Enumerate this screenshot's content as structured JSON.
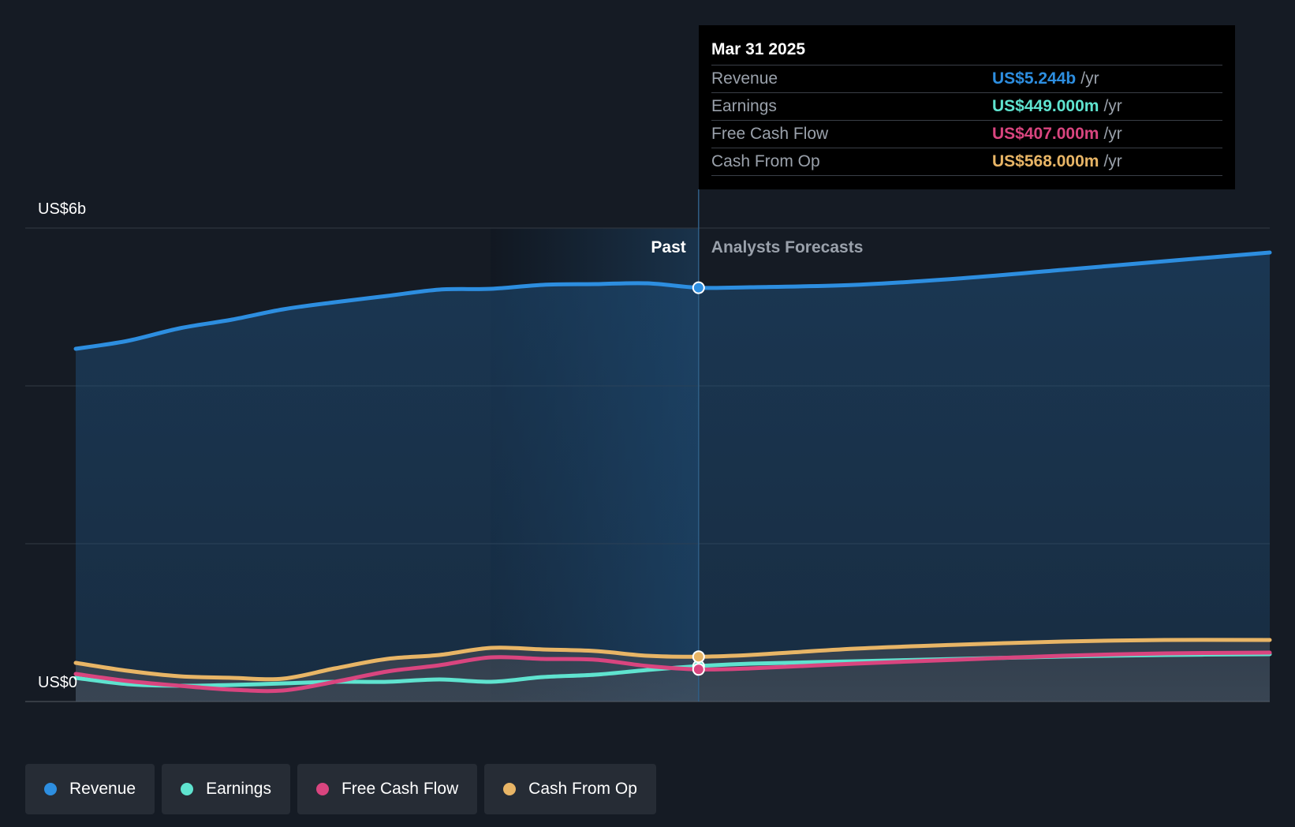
{
  "chart_data": {
    "type": "line",
    "y_top_label": "US$6b",
    "y_bottom_label": "US$0",
    "ylim": [
      0,
      6
    ],
    "y_unit": "US$ billions",
    "x_ticks": [
      "2023",
      "2024",
      "2025",
      "2026",
      "2027"
    ],
    "xlim": [
      "2022-03-31",
      "2027-12-31"
    ],
    "divider_date": "2025-03-31",
    "past_label": "Past",
    "forecast_label": "Analysts Forecasts",
    "series": [
      {
        "name": "Revenue",
        "color": "#2d8ee0",
        "points": [
          [
            "2022-03-31",
            4.47
          ],
          [
            "2022-06-30",
            4.57
          ],
          [
            "2022-09-30",
            4.73
          ],
          [
            "2022-12-31",
            4.84
          ],
          [
            "2023-03-31",
            4.97
          ],
          [
            "2023-06-30",
            5.06
          ],
          [
            "2023-09-30",
            5.14
          ],
          [
            "2023-12-31",
            5.22
          ],
          [
            "2024-03-31",
            5.23
          ],
          [
            "2024-06-30",
            5.28
          ],
          [
            "2024-09-30",
            5.29
          ],
          [
            "2024-12-31",
            5.3
          ],
          [
            "2025-03-31",
            5.244
          ],
          [
            "2025-06-30",
            5.25
          ],
          [
            "2025-12-31",
            5.28
          ],
          [
            "2026-06-30",
            5.36
          ],
          [
            "2026-12-31",
            5.47
          ],
          [
            "2027-06-30",
            5.58
          ],
          [
            "2027-12-31",
            5.69
          ]
        ]
      },
      {
        "name": "Earnings",
        "color": "#5fe3cf",
        "points": [
          [
            "2022-03-31",
            0.3
          ],
          [
            "2022-06-30",
            0.22
          ],
          [
            "2022-09-30",
            0.2
          ],
          [
            "2022-12-31",
            0.21
          ],
          [
            "2023-03-31",
            0.23
          ],
          [
            "2023-06-30",
            0.25
          ],
          [
            "2023-09-30",
            0.25
          ],
          [
            "2023-12-31",
            0.28
          ],
          [
            "2024-03-31",
            0.25
          ],
          [
            "2024-06-30",
            0.31
          ],
          [
            "2024-09-30",
            0.34
          ],
          [
            "2024-12-31",
            0.4
          ],
          [
            "2025-03-31",
            0.449
          ],
          [
            "2025-06-30",
            0.48
          ],
          [
            "2025-12-31",
            0.51
          ],
          [
            "2026-06-30",
            0.54
          ],
          [
            "2026-12-31",
            0.57
          ],
          [
            "2027-06-30",
            0.59
          ],
          [
            "2027-12-31",
            0.6
          ]
        ]
      },
      {
        "name": "Free Cash Flow",
        "color": "#d9457f",
        "points": [
          [
            "2022-03-31",
            0.35
          ],
          [
            "2022-06-30",
            0.26
          ],
          [
            "2022-09-30",
            0.2
          ],
          [
            "2022-12-31",
            0.15
          ],
          [
            "2023-03-31",
            0.14
          ],
          [
            "2023-06-30",
            0.25
          ],
          [
            "2023-09-30",
            0.38
          ],
          [
            "2023-12-31",
            0.46
          ],
          [
            "2024-03-31",
            0.56
          ],
          [
            "2024-06-30",
            0.54
          ],
          [
            "2024-09-30",
            0.53
          ],
          [
            "2024-12-31",
            0.45
          ],
          [
            "2025-03-31",
            0.407
          ],
          [
            "2025-06-30",
            0.42
          ],
          [
            "2025-12-31",
            0.48
          ],
          [
            "2026-06-30",
            0.53
          ],
          [
            "2026-12-31",
            0.58
          ],
          [
            "2027-06-30",
            0.61
          ],
          [
            "2027-12-31",
            0.62
          ]
        ]
      },
      {
        "name": "Cash From Op",
        "color": "#e8b566",
        "points": [
          [
            "2022-03-31",
            0.49
          ],
          [
            "2022-06-30",
            0.39
          ],
          [
            "2022-09-30",
            0.32
          ],
          [
            "2022-12-31",
            0.3
          ],
          [
            "2023-03-31",
            0.29
          ],
          [
            "2023-06-30",
            0.42
          ],
          [
            "2023-09-30",
            0.54
          ],
          [
            "2023-12-31",
            0.59
          ],
          [
            "2024-03-31",
            0.68
          ],
          [
            "2024-06-30",
            0.66
          ],
          [
            "2024-09-30",
            0.64
          ],
          [
            "2024-12-31",
            0.58
          ],
          [
            "2025-03-31",
            0.568
          ],
          [
            "2025-06-30",
            0.59
          ],
          [
            "2025-12-31",
            0.67
          ],
          [
            "2026-06-30",
            0.72
          ],
          [
            "2026-12-31",
            0.76
          ],
          [
            "2027-06-30",
            0.78
          ],
          [
            "2027-12-31",
            0.78
          ]
        ]
      }
    ]
  },
  "tooltip": {
    "date": "Mar 31 2025",
    "unit": "/yr",
    "rows": [
      {
        "name": "Revenue",
        "value": "US$5.244b",
        "color": "#2d8ee0"
      },
      {
        "name": "Earnings",
        "value": "US$449.000m",
        "color": "#5fe3cf"
      },
      {
        "name": "Free Cash Flow",
        "value": "US$407.000m",
        "color": "#d9457f"
      },
      {
        "name": "Cash From Op",
        "value": "US$568.000m",
        "color": "#e8b566"
      }
    ]
  },
  "legend": [
    {
      "label": "Revenue",
      "color": "#2d8ee0"
    },
    {
      "label": "Earnings",
      "color": "#5fe3cf"
    },
    {
      "label": "Free Cash Flow",
      "color": "#d9457f"
    },
    {
      "label": "Cash From Op",
      "color": "#e8b566"
    }
  ]
}
